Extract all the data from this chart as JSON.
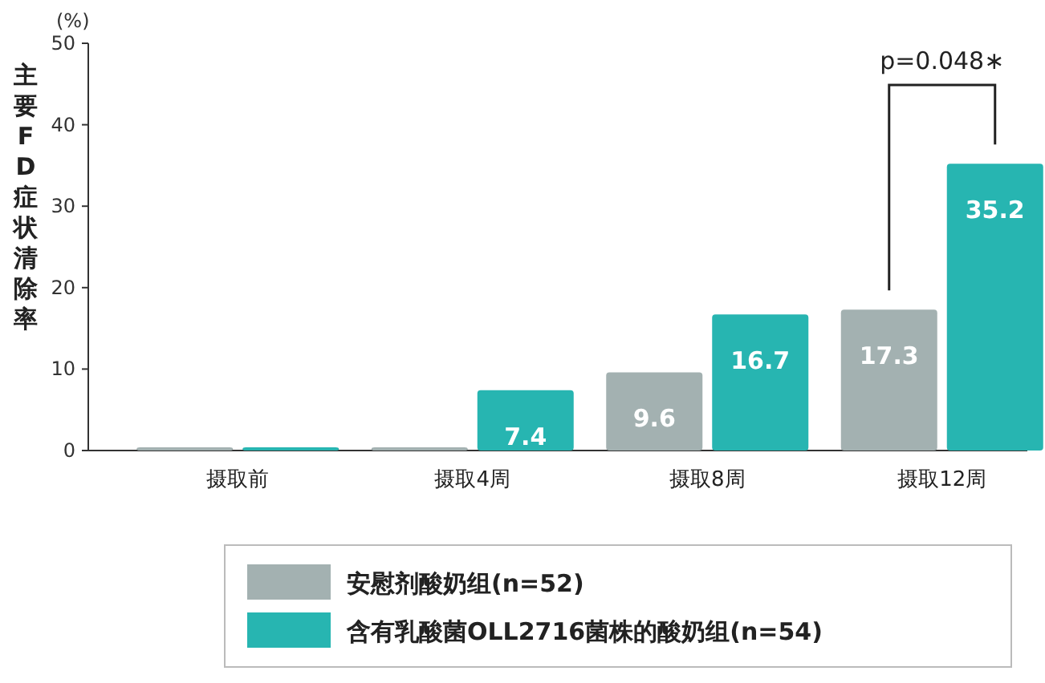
{
  "chart_data": {
    "type": "bar",
    "ylabel": "主要FD症状清除率",
    "categories": [
      "摄取前",
      "摄取4周",
      "摄取8周",
      "摄取12周"
    ],
    "series": [
      {
        "name": "安慰剂酸奶组(n=52)",
        "color": "#a3b1b1",
        "values": [
          0,
          0,
          9.6,
          17.3
        ],
        "value_labels": [
          null,
          null,
          "9.6",
          "17.3"
        ]
      },
      {
        "name": "含有乳酸菌OLL2716菌株的酸奶组(n=54)",
        "color": "#27b5b1",
        "values": [
          0,
          7.4,
          16.7,
          35.2
        ],
        "value_labels": [
          null,
          "7.4",
          "16.7",
          "35.2"
        ]
      }
    ],
    "ylim": [
      0,
      50
    ],
    "yticks": [
      0,
      10,
      20,
      30,
      40,
      50
    ],
    "annotations": [
      "(%)",
      "p=0.048∗"
    ],
    "legend": "bottom",
    "grid": false
  }
}
